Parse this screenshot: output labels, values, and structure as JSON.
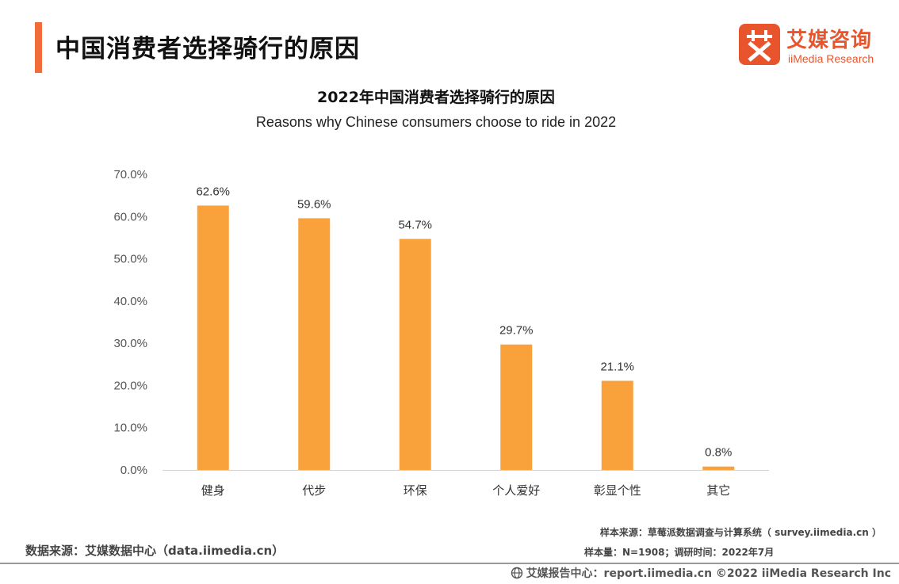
{
  "header": {
    "title": "中国消费者选择骑行的原因",
    "logo_cn": "艾媒咨询",
    "logo_en": "iiMedia Research",
    "logo_mark_glyph": "艾"
  },
  "colors": {
    "accent": "#f26b3a",
    "brand": "#e8552d",
    "bar": "#f9a23c"
  },
  "chart_data": {
    "type": "bar",
    "title": "2022年中国消费者选择骑行的原因",
    "subtitle": "Reasons why Chinese consumers choose to ride in 2022",
    "categories": [
      "健身",
      "代步",
      "环保",
      "个人爱好",
      "彰显个性",
      "其它"
    ],
    "values": [
      62.6,
      59.6,
      54.7,
      29.7,
      21.1,
      0.8
    ],
    "data_labels": [
      "62.6%",
      "59.6%",
      "54.7%",
      "29.7%",
      "21.1%",
      "0.8%"
    ],
    "ylim": [
      0,
      70
    ],
    "yticks": [
      0,
      10,
      20,
      30,
      40,
      50,
      60,
      70
    ],
    "ytick_labels": [
      "0.0%",
      "10.0%",
      "20.0%",
      "30.0%",
      "40.0%",
      "50.0%",
      "60.0%",
      "70.0%"
    ],
    "xlabel": "",
    "ylabel": "",
    "grid": false,
    "legend": "none"
  },
  "source": {
    "data_source": "数据来源：艾媒数据中心（data.iimedia.cn）",
    "sample_source": "样本来源：草莓派数据调查与计算系统（ survey.iimedia.cn ）",
    "sample_size": "样本量：N=1908；调研时间：2022年7月"
  },
  "footer": {
    "text": "艾媒报告中心：report.iimedia.cn   ©2022  iiMedia Research  Inc",
    "icon": "globe-icon"
  }
}
